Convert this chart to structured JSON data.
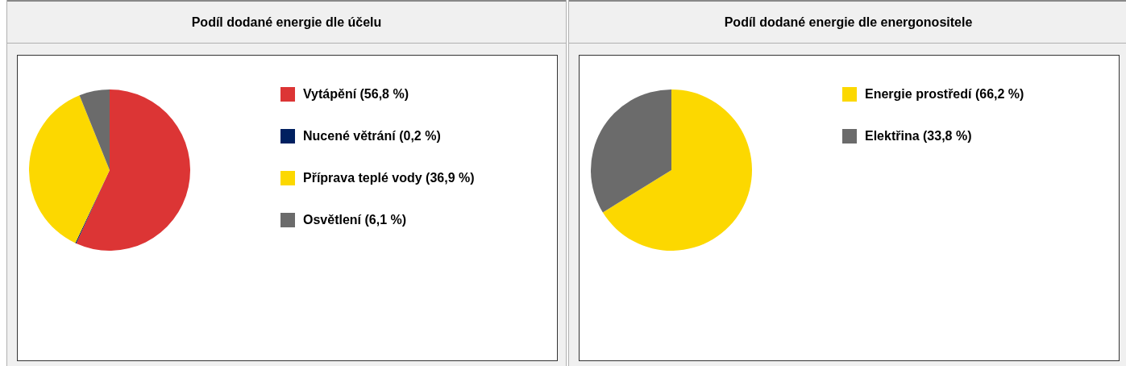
{
  "chart_data": [
    {
      "type": "pie",
      "title": "Podíl dodané energie dle účelu",
      "categories": [
        "Vytápění (56,8 %)",
        "Nucené větrání (0,2 %)",
        "Příprava teplé vody (36,9 %)",
        "Osvětlení (6,1 %)"
      ],
      "values": [
        56.8,
        0.2,
        36.9,
        6.1
      ],
      "colors": [
        "#dc3535",
        "#002060",
        "#fcd800",
        "#6b6b6b"
      ],
      "legend": "right"
    },
    {
      "type": "pie",
      "title": "Podíl dodané energie dle energonositele",
      "categories": [
        "Energie prostředí (66,2 %)",
        "Elektřina (33,8 %)"
      ],
      "values": [
        66.2,
        33.8
      ],
      "colors": [
        "#fcd800",
        "#6b6b6b"
      ],
      "legend": "right"
    }
  ]
}
